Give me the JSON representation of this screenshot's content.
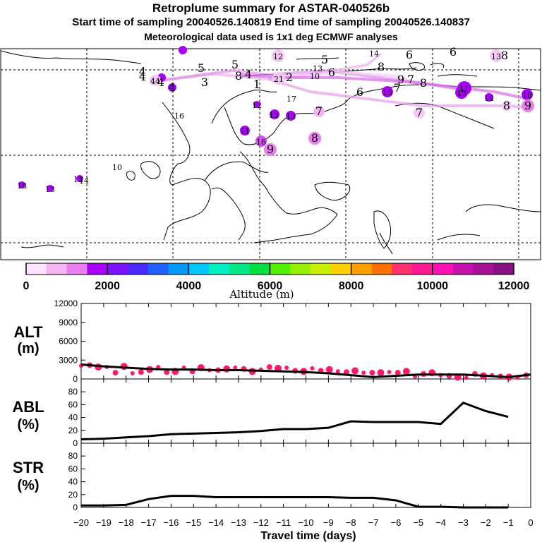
{
  "header": {
    "title": "Retroplume summary for ASTAR-040526b",
    "sampling": "Start time of sampling 20040526.140819     End time of sampling 20040526.140837",
    "meteo": "Meteorological data used is 1x1 deg ECMWF analyses"
  },
  "map": {
    "labels": [
      {
        "t": "12",
        "x": 394,
        "y": 79
      },
      {
        "t": "5",
        "x": 460,
        "y": 85
      },
      {
        "t": "14",
        "x": 530,
        "y": 75
      },
      {
        "t": "6",
        "x": 580,
        "y": 78
      },
      {
        "t": "6",
        "x": 642,
        "y": 74
      },
      {
        "t": "13",
        "x": 703,
        "y": 79
      },
      {
        "t": "8",
        "x": 715,
        "y": 79
      },
      {
        "t": "4",
        "x": 202,
        "y": 102
      },
      {
        "t": "4",
        "x": 202,
        "y": 109
      },
      {
        "t": "44",
        "x": 220,
        "y": 114
      },
      {
        "t": "4",
        "x": 228,
        "y": 117
      },
      {
        "t": "5",
        "x": 285,
        "y": 97
      },
      {
        "t": "3",
        "x": 290,
        "y": 117
      },
      {
        "t": "5",
        "x": 333,
        "y": 92
      },
      {
        "t": "8",
        "x": 338,
        "y": 108
      },
      {
        "t": "4",
        "x": 352,
        "y": 106
      },
      {
        "t": "1",
        "x": 364,
        "y": 120
      },
      {
        "t": "21",
        "x": 395,
        "y": 111
      },
      {
        "t": "2",
        "x": 410,
        "y": 110
      },
      {
        "t": "13",
        "x": 450,
        "y": 96
      },
      {
        "t": "10",
        "x": 446,
        "y": 107
      },
      {
        "t": "6",
        "x": 470,
        "y": 103
      },
      {
        "t": "8",
        "x": 540,
        "y": 95
      },
      {
        "t": "9",
        "x": 568,
        "y": 113
      },
      {
        "t": "7",
        "x": 582,
        "y": 113
      },
      {
        "t": "8",
        "x": 600,
        "y": 118
      },
      {
        "t": "6",
        "x": 510,
        "y": 131
      },
      {
        "t": "15",
        "x": 549,
        "y": 130
      },
      {
        "t": "7",
        "x": 563,
        "y": 125
      },
      {
        "t": "11",
        "x": 658,
        "y": 125
      },
      {
        "t": "13",
        "x": 654,
        "y": 131
      },
      {
        "t": "14",
        "x": 693,
        "y": 138
      },
      {
        "t": "10",
        "x": 747,
        "y": 134
      },
      {
        "t": "8",
        "x": 718,
        "y": 150
      },
      {
        "t": "9",
        "x": 748,
        "y": 150
      },
      {
        "t": "7",
        "x": 594,
        "y": 160
      },
      {
        "t": "4",
        "x": 244,
        "y": 124
      },
      {
        "t": "17",
        "x": 413,
        "y": 139
      },
      {
        "t": "12",
        "x": 364,
        "y": 148
      },
      {
        "t": "16",
        "x": 254,
        "y": 163
      },
      {
        "t": "13",
        "x": 388,
        "y": 162
      },
      {
        "t": "13",
        "x": 412,
        "y": 164
      },
      {
        "t": "7",
        "x": 452,
        "y": 158
      },
      {
        "t": "11",
        "x": 347,
        "y": 185
      },
      {
        "t": "8",
        "x": 446,
        "y": 196
      },
      {
        "t": "16",
        "x": 370,
        "y": 200
      },
      {
        "t": "9",
        "x": 383,
        "y": 212
      },
      {
        "t": "10",
        "x": 166,
        "y": 236
      },
      {
        "t": "12",
        "x": 111,
        "y": 253
      },
      {
        "t": "14",
        "x": 119,
        "y": 255
      },
      {
        "t": "18",
        "x": 31,
        "y": 262
      },
      {
        "t": "13",
        "x": 71,
        "y": 267
      }
    ]
  },
  "colorbar": {
    "ticks": [
      "0",
      "2000",
      "4000",
      "6000",
      "8000",
      "10000",
      "12000"
    ],
    "label": "Altitude (m)",
    "colors": [
      "#ffe4ff",
      "#f4b4f4",
      "#e87ef0",
      "#d24ef0",
      "#a800f8",
      "#7c10ff",
      "#4c28ff",
      "#2060ff",
      "#0098ff",
      "#00c8ff",
      "#00e8e8",
      "#00f0c0",
      "#00e888",
      "#00e040",
      "#50f000",
      "#98f000",
      "#c8f000",
      "#f0f000",
      "#ffd000",
      "#ffa000",
      "#ff7000",
      "#ff3070",
      "#ff1890",
      "#ff10b0",
      "#e810b8",
      "#c810b0",
      "#a81098",
      "#881080"
    ]
  },
  "chart_data": [
    {
      "type": "line",
      "name": "ALT",
      "ylabel": "ALT (m)",
      "ylim": [
        0,
        12000
      ],
      "yticks": [
        "12000",
        "9000",
        "6000",
        "3000",
        "0"
      ],
      "x": [
        -20,
        -19,
        -18,
        -17,
        -16,
        -15,
        -14,
        -13,
        -12,
        -11,
        -10,
        -9,
        -8,
        -7,
        -6,
        -5,
        -4,
        -3,
        -2,
        -1,
        0
      ],
      "values": [
        2300,
        2000,
        1800,
        1600,
        1500,
        1500,
        1400,
        1400,
        1300,
        1200,
        1100,
        900,
        600,
        300,
        500,
        700,
        700,
        700,
        500,
        300,
        700
      ],
      "markers": [
        2100,
        2200,
        1900,
        1900,
        1000,
        2000,
        900,
        1100,
        1500,
        1900,
        1100,
        1200,
        1800,
        1200,
        1800,
        1400,
        1400,
        1600,
        1800,
        1600,
        1200,
        1500,
        1900,
        1700,
        1800,
        1300,
        1200,
        1700,
        1300,
        1500,
        1200,
        1100,
        1300,
        1000,
        1000,
        1000,
        1100,
        1000,
        1200,
        400,
        800,
        1000,
        600,
        500,
        300,
        200,
        800,
        500,
        600,
        400,
        300,
        200,
        600
      ]
    },
    {
      "type": "line",
      "name": "ABL",
      "ylabel": "ABL (%)",
      "ylim": [
        0,
        100
      ],
      "yticks": [
        "80",
        "60",
        "40",
        "20",
        "0"
      ],
      "x": [
        -20,
        -19,
        -18,
        -17,
        -16,
        -15,
        -14,
        -13,
        -12,
        -11,
        -10,
        -9,
        -8,
        -7,
        -6,
        -5,
        -4,
        -3,
        -2,
        -1
      ],
      "values": [
        6,
        7,
        9,
        11,
        14,
        15,
        16,
        17,
        19,
        22,
        22,
        24,
        34,
        33,
        33,
        33,
        30,
        63,
        50,
        41
      ]
    },
    {
      "type": "line",
      "name": "STR",
      "ylabel": "STR (%)",
      "ylim": [
        0,
        100
      ],
      "yticks": [
        "80",
        "60",
        "40",
        "20",
        "0"
      ],
      "x": [
        -20,
        -19,
        -18,
        -17,
        -16,
        -15,
        -14,
        -13,
        -12,
        -11,
        -10,
        -9,
        -8,
        -7,
        -6,
        -5,
        -4,
        -3,
        -2,
        -1
      ],
      "values": [
        3,
        3,
        4,
        13,
        18,
        18,
        16,
        16,
        16,
        16,
        16,
        16,
        15,
        15,
        11,
        1,
        1,
        0,
        0,
        0
      ],
      "xlabel": "Travel time (days)",
      "xticks": [
        "−20",
        "−19",
        "−18",
        "−17",
        "−16",
        "−15",
        "−14",
        "−13",
        "−12",
        "−11",
        "−10",
        "−9",
        "−8",
        "−7",
        "−6",
        "−5",
        "−4",
        "−3",
        "−2",
        "−1",
        "0"
      ]
    }
  ]
}
